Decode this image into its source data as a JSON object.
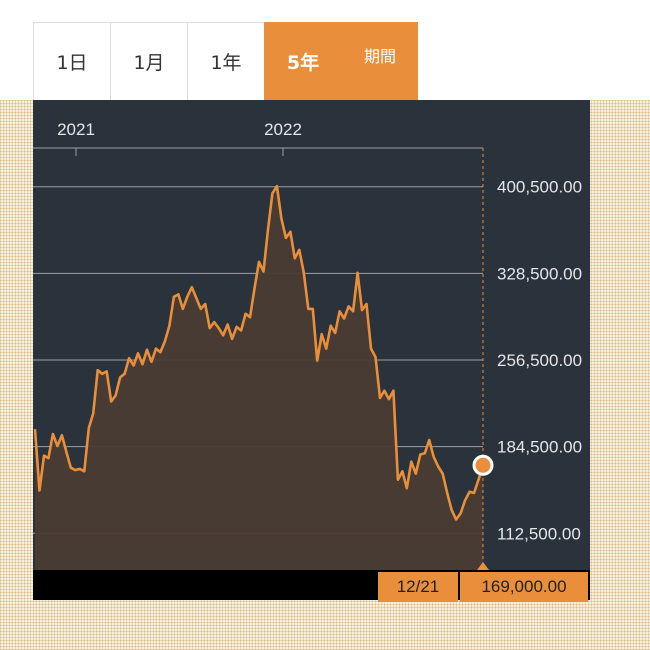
{
  "tabs": [
    {
      "label": "1日",
      "active": false
    },
    {
      "label": "1月",
      "active": false
    },
    {
      "label": "1年",
      "active": false
    },
    {
      "label": "5年",
      "active": true
    },
    {
      "label": "期間",
      "active": false
    }
  ],
  "colors": {
    "accent": "#e98f3b",
    "panel": "#2a323c",
    "line": "#e98f3b",
    "area": "#4a3c33"
  },
  "readout": {
    "date": "12/21",
    "value": "169,000.00"
  },
  "chart_data": {
    "type": "area",
    "x_tick_labels": [
      "2021",
      "2022"
    ],
    "y_tick_labels": [
      "400,500.00",
      "328,500.00",
      "256,500.00",
      "184,500.00",
      "112,500.00"
    ],
    "y_ticks": [
      400500,
      328500,
      256500,
      184500,
      112500
    ],
    "ylim": [
      82000,
      431000
    ],
    "grid": true,
    "series": [
      {
        "values": [
          199000,
          148000,
          177000,
          175000,
          195000,
          185000,
          194000,
          180000,
          167000,
          165000,
          166000,
          164000,
          200000,
          212000,
          248000,
          245000,
          247000,
          222000,
          227000,
          242000,
          245000,
          258000,
          252000,
          262000,
          253000,
          265000,
          255000,
          266000,
          263000,
          272000,
          285000,
          309000,
          311000,
          299000,
          309000,
          317000,
          308000,
          299000,
          303000,
          283000,
          288000,
          283000,
          277000,
          286000,
          274000,
          284000,
          281000,
          295000,
          292000,
          316000,
          338000,
          330000,
          365000,
          395000,
          401000,
          374000,
          358000,
          363000,
          341000,
          348000,
          329000,
          299000,
          299000,
          256000,
          278000,
          266000,
          285000,
          279000,
          297000,
          291000,
          301000,
          297000,
          329000,
          298000,
          303000,
          266000,
          259000,
          225000,
          231000,
          224000,
          231000,
          157000,
          164000,
          150000,
          172000,
          162000,
          178000,
          179000,
          190000,
          176000,
          168000,
          162000,
          146000,
          132000,
          124000,
          129000,
          140000,
          147000,
          146000,
          157000,
          169000
        ]
      }
    ]
  }
}
